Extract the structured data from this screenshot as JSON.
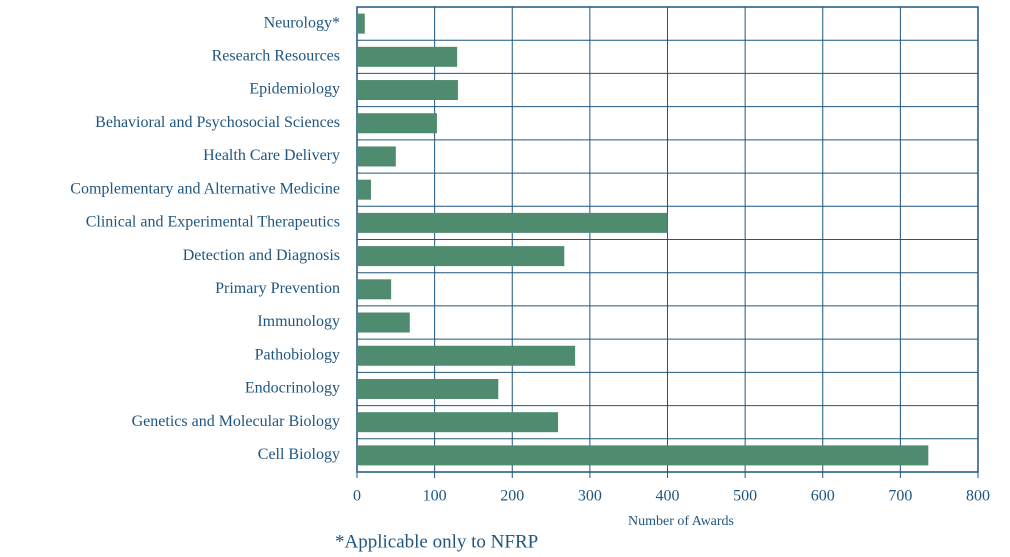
{
  "chart_data": {
    "type": "barh",
    "categories": [
      "Neurology*",
      "Research Resources",
      "Epidemiology",
      "Behavioral and Psychosocial Sciences",
      "Health Care Delivery",
      "Complementary and Alternative Medicine",
      "Clinical and Experimental Therapeutics",
      "Detection and Diagnosis",
      "Primary Prevention",
      "Immunology",
      "Pathobiology",
      "Endocrinology",
      "Genetics and Molecular Biology",
      "Cell Biology"
    ],
    "values": [
      10,
      129,
      130,
      103,
      50,
      18,
      400,
      267,
      44,
      68,
      281,
      182,
      259,
      736
    ],
    "color": "#4e8b6f",
    "xlabel": "Number of Awards",
    "annotation": "*Applicable only to NFRP",
    "xlim": [
      0,
      800
    ],
    "xticks": [
      0,
      100,
      200,
      300,
      400,
      500,
      600,
      700,
      800
    ],
    "grid": true
  }
}
